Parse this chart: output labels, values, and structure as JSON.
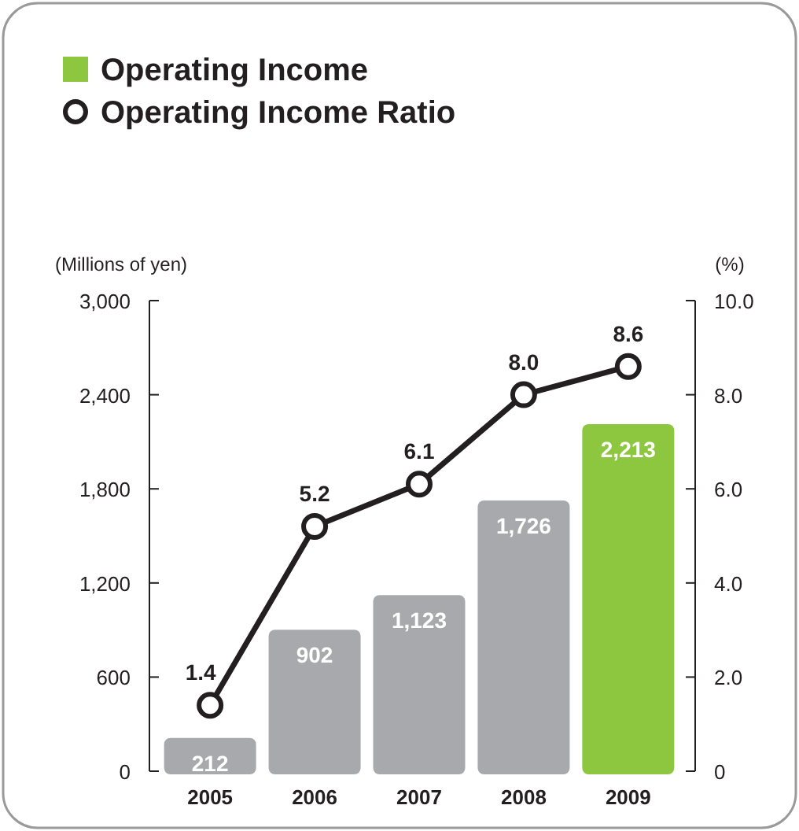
{
  "chart_data": {
    "type": "bar",
    "categories": [
      "2005",
      "2006",
      "2007",
      "2008",
      "2009"
    ],
    "ylabel": "(Millions of yen)",
    "y2label": "(%)",
    "series": [
      {
        "name": "Operating Income",
        "color": "#8dc63f",
        "colors": [
          "#a7a9ac",
          "#a7a9ac",
          "#a7a9ac",
          "#a7a9ac",
          "#8dc63f"
        ],
        "values": [
          212,
          902,
          1123,
          1726,
          2213
        ],
        "value_labels": [
          "212",
          "902",
          "1,123",
          "1,726",
          "2,213"
        ]
      },
      {
        "name": "Operating Income Ratio",
        "type": "line",
        "axis": "y2",
        "color": "#231f20",
        "values": [
          1.4,
          5.2,
          6.1,
          8.0,
          8.6
        ],
        "value_labels": [
          "1.4",
          "5.2",
          "6.1",
          "8.0",
          "8.6"
        ]
      }
    ],
    "ylim": [
      0,
      3000
    ],
    "yticks": [
      {
        "value": 0,
        "label": "0"
      },
      {
        "value": 600,
        "label": "600"
      },
      {
        "value": 1200,
        "label": "1,200"
      },
      {
        "value": 1800,
        "label": "1,800"
      },
      {
        "value": 2400,
        "label": "2,400"
      },
      {
        "value": 3000,
        "label": "3,000"
      }
    ],
    "y2lim": [
      0,
      10
    ],
    "y2ticks": [
      {
        "value": 0,
        "label": "0"
      },
      {
        "value": 2,
        "label": "2.0"
      },
      {
        "value": 4,
        "label": "4.0"
      },
      {
        "value": 6,
        "label": "6.0"
      },
      {
        "value": 8,
        "label": "8.0"
      },
      {
        "value": 10,
        "label": "10.0"
      }
    ],
    "legend": "top left",
    "marker": "circle",
    "grid": false
  }
}
